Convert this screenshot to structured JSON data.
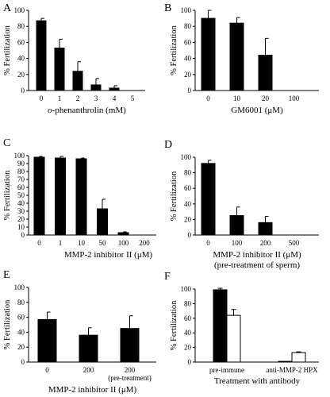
{
  "chart_data": [
    {
      "panel": "A",
      "type": "bar",
      "categories": [
        "0",
        "1",
        "2",
        "3",
        "4",
        "5"
      ],
      "values": [
        87,
        53,
        24,
        7,
        3,
        0
      ],
      "errors": [
        3,
        11,
        12,
        8,
        3,
        0
      ],
      "fills": [
        "#000",
        "#000",
        "#000",
        "#000",
        "#000",
        "#000"
      ],
      "ylabel": "% Fertilization",
      "xlabel": [
        "o-phenanthrolin (mM)"
      ],
      "ylim": [
        0,
        100
      ],
      "yticks": [
        "0",
        "20",
        "40",
        "60",
        "80",
        "100"
      ]
    },
    {
      "panel": "B",
      "type": "bar",
      "categories": [
        "0",
        "10",
        "20",
        "100"
      ],
      "values": [
        90,
        84,
        44,
        0
      ],
      "errors": [
        10,
        7,
        21,
        0
      ],
      "fills": [
        "#000",
        "#000",
        "#000",
        "#000"
      ],
      "ylabel": "% Fertilization",
      "xlabel": [
        "GM6001 (μM)"
      ],
      "ylim": [
        0,
        100
      ],
      "yticks": [
        "0",
        "20",
        "40",
        "60",
        "80",
        "100"
      ]
    },
    {
      "panel": "C",
      "type": "bar",
      "categories": [
        "0",
        "1",
        "10",
        "50",
        "100",
        "200"
      ],
      "values": [
        98,
        97,
        96,
        33,
        3,
        0
      ],
      "errors": [
        1,
        2,
        1,
        12,
        1,
        0
      ],
      "fills": [
        "#000",
        "#000",
        "#000",
        "#000",
        "#000",
        "#000"
      ],
      "ylabel": "% Fertilization",
      "xlabel": [
        "MMP-2 inhibitor II (μM)"
      ],
      "ylim": [
        0,
        100
      ],
      "yticks": [
        "0",
        "10",
        "20",
        "30",
        "40",
        "50",
        "60",
        "70",
        "80",
        "90",
        "100"
      ]
    },
    {
      "panel": "D",
      "type": "bar",
      "categories": [
        "0",
        "100",
        "200",
        "500"
      ],
      "values": [
        92,
        25,
        16,
        0
      ],
      "errors": [
        4,
        11,
        8,
        0
      ],
      "fills": [
        "#000",
        "#000",
        "#000",
        "#000"
      ],
      "ylabel": "% Fertilization",
      "xlabel": [
        "MMP-2 inhibitor II (μM)",
        "(pre-treatment of sperm)"
      ],
      "ylim": [
        0,
        100
      ],
      "yticks": [
        "0",
        "20",
        "40",
        "60",
        "80",
        "100"
      ]
    },
    {
      "panel": "E",
      "type": "bar",
      "categories": [
        "0",
        "200",
        "200\n(pre-treatment)"
      ],
      "values": [
        57,
        36,
        45
      ],
      "errors": [
        10,
        10,
        17
      ],
      "fills": [
        "#000",
        "#000",
        "#000"
      ],
      "ylabel": "% Fertilization",
      "xlabel": [
        "MMP-2 inhibitor II (μM)"
      ],
      "ylim": [
        0,
        100
      ],
      "yticks": [
        "0",
        "20",
        "40",
        "60",
        "80",
        "100"
      ]
    },
    {
      "panel": "F",
      "type": "bar",
      "categories": [
        "pre-immune",
        "anti-MMP-2 HPX"
      ],
      "series": [
        {
          "values": [
            99,
            1
          ],
          "errors": [
            2,
            0
          ],
          "fill": "#000"
        },
        {
          "values": [
            64,
            13
          ],
          "errors": [
            8,
            1
          ],
          "fill": "#fff"
        }
      ],
      "ylabel": "% Fertilization",
      "xlabel": [
        "Treatment with antibody"
      ],
      "ylim": [
        0,
        100
      ],
      "yticks": [
        "0",
        "20",
        "40",
        "60",
        "80",
        "100"
      ]
    }
  ]
}
